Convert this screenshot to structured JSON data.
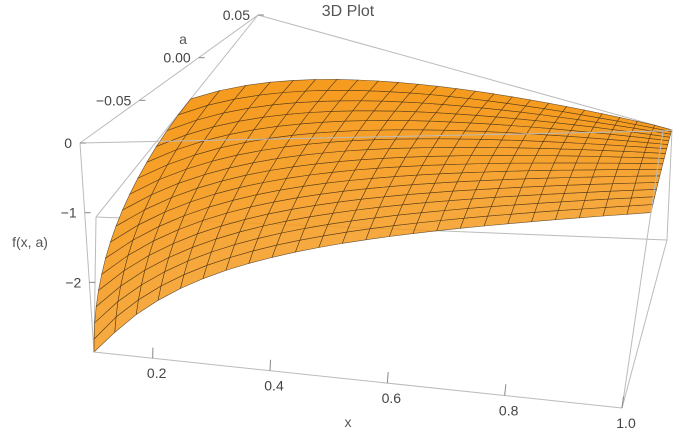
{
  "chart_data": {
    "type": "surface3d",
    "title": "3D Plot",
    "xlabel": "x",
    "ylabel": "a",
    "zlabel": "f(x, a)",
    "xlim": [
      0.1,
      1.0
    ],
    "ylim": [
      -0.1,
      0.05
    ],
    "zlim": [
      -3,
      0
    ],
    "x_ticks": [
      "0.2",
      "0.4",
      "0.6",
      "0.8",
      "1.0"
    ],
    "y_ticks": [
      "−0.05",
      "0.00",
      "0.05"
    ],
    "z_ticks": [
      "0",
      "−1",
      "−2"
    ],
    "x_tick_values": [
      0.2,
      0.4,
      0.6,
      0.8,
      1.0
    ],
    "y_tick_values": [
      -0.05,
      0.0,
      0.05
    ],
    "z_tick_values": [
      0,
      -1,
      -2
    ],
    "surface_color": "#f59a1d",
    "mesh_color": "#3b2a14",
    "box_color": "#bbbbbb"
  }
}
